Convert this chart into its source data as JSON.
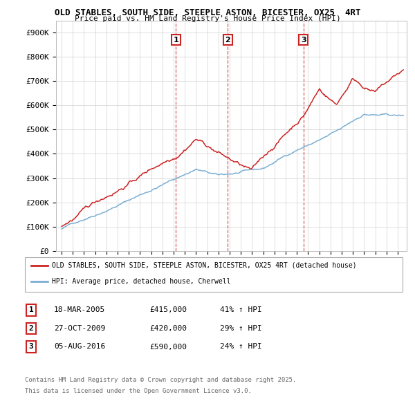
{
  "title1": "OLD STABLES, SOUTH SIDE, STEEPLE ASTON, BICESTER, OX25  4RT",
  "title2": "Price paid vs. HM Land Registry's House Price Index (HPI)",
  "legend_line1": "OLD STABLES, SOUTH SIDE, STEEPLE ASTON, BICESTER, OX25 4RT (detached house)",
  "legend_line2": "HPI: Average price, detached house, Cherwell",
  "footer1": "Contains HM Land Registry data © Crown copyright and database right 2025.",
  "footer2": "This data is licensed under the Open Government Licence v3.0.",
  "sale_events": [
    {
      "label": "1",
      "date_x": 2005.21,
      "price": 415000,
      "date_str": "18-MAR-2005",
      "amount_str": "£415,000",
      "change": "41% ↑ HPI"
    },
    {
      "label": "2",
      "date_x": 2009.83,
      "price": 420000,
      "date_str": "27-OCT-2009",
      "amount_str": "£420,000",
      "change": "29% ↑ HPI"
    },
    {
      "label": "3",
      "date_x": 2016.59,
      "price": 590000,
      "date_str": "05-AUG-2016",
      "amount_str": "£590,000",
      "change": "24% ↑ HPI"
    }
  ],
  "hpi_color": "#7bafd4",
  "price_color": "#cc2222",
  "dashed_color": "#cc3333",
  "background_color": "#ffffff",
  "grid_color": "#d0d0d0",
  "ylim": [
    0,
    950000
  ],
  "xlim_start": 1994.5,
  "xlim_end": 2025.8,
  "yticks": [
    0,
    100000,
    200000,
    300000,
    400000,
    500000,
    600000,
    700000,
    800000,
    900000
  ],
  "ytick_labels": [
    "£0",
    "£100K",
    "£200K",
    "£300K",
    "£400K",
    "£500K",
    "£600K",
    "£700K",
    "£800K",
    "£900K"
  ]
}
